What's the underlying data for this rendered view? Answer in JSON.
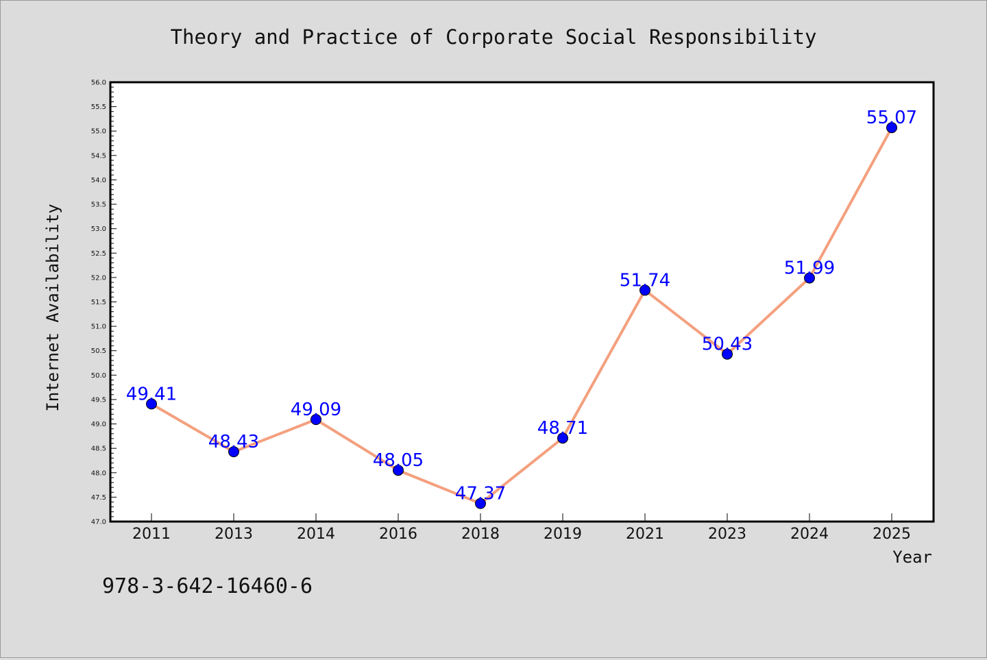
{
  "chart_data": {
    "type": "line",
    "title": "Theory and Practice of Corporate Social Responsibility",
    "xlabel": "Year",
    "ylabel": "Internet Availability",
    "categories": [
      "2011",
      "2013",
      "2014",
      "2016",
      "2018",
      "2019",
      "2021",
      "2023",
      "2024",
      "2025"
    ],
    "series": [
      {
        "values": [
          49.41,
          48.43,
          49.09,
          48.05,
          47.37,
          48.71,
          51.74,
          50.43,
          51.99,
          55.07
        ],
        "labels": [
          "49.41",
          "48.43",
          "49.09",
          "48.05",
          "47.37",
          "48.71",
          "51.74",
          "50.43",
          "51.99",
          "55.07"
        ],
        "line_color": "#f4a07e",
        "marker_color": "#0000ff"
      }
    ],
    "ylim": [
      47.0,
      56.0
    ],
    "yticks": [
      "47.0",
      "47.5",
      "48.0",
      "48.5",
      "49.0",
      "49.5",
      "50.0",
      "50.5",
      "51.0",
      "51.5",
      "52.0",
      "52.5",
      "53.0",
      "53.5",
      "54.0",
      "54.5",
      "55.0",
      "55.5",
      "56.0"
    ],
    "grid": false,
    "legend": "none"
  },
  "annotation": "978-3-642-16460-6",
  "colors": {
    "background": "#dcdcdc",
    "plot_background": "#ffffff",
    "line": "#f4a07e",
    "marker": "#0000ff",
    "data_label": "#0000ff"
  }
}
